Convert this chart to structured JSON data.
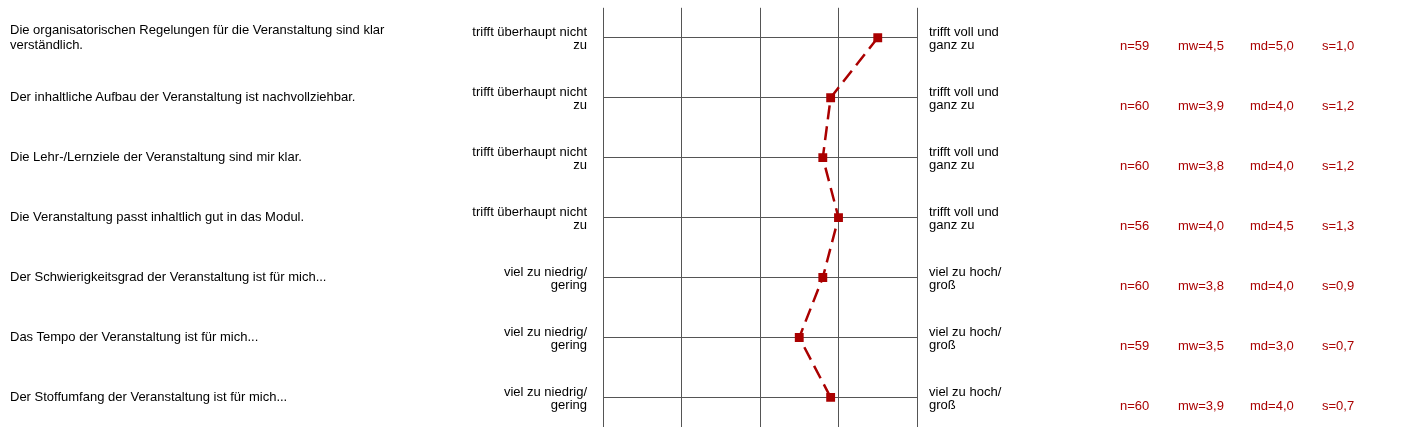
{
  "chart_data": {
    "type": "line",
    "orientation": "horizontal",
    "categories": [
      "Die organisatorischen Regelungen für die Veranstaltung sind klar verständlich.",
      "Der inhaltliche Aufbau der Veranstaltung ist nachvollziehbar.",
      "Die Lehr-/Lernziele der Veranstaltung sind mir klar.",
      "Die Veranstaltung passt inhaltlich gut in das Modul.",
      "Der Schwierigkeitsgrad der Veranstaltung ist für mich...",
      "Das Tempo der Veranstaltung ist für mich...",
      "Der Stoffumfang der Veranstaltung ist für mich..."
    ],
    "values": [
      4.5,
      3.9,
      3.8,
      4.0,
      3.8,
      3.5,
      3.9
    ],
    "value_labels": [
      "mw=4,5",
      "mw=3,9",
      "mw=3,8",
      "mw=4,0",
      "mw=3,8",
      "mw=3,5",
      "mw=3,9"
    ],
    "color": "#aa0000",
    "marker": "square",
    "line_style": "dashed",
    "grid": true,
    "legend": false,
    "tick_labels": "y",
    "xlim": [
      1,
      5
    ],
    "xticks": [
      {
        "value": 1,
        "label": null
      },
      {
        "value": 2,
        "label": null
      },
      {
        "value": 3,
        "label": null
      },
      {
        "value": 4,
        "label": null
      },
      {
        "value": 5,
        "label": null
      }
    ],
    "annotations": [
      "trifft überhaupt nicht zu",
      "trifft voll und ganz zu",
      "n=59",
      "md=5,0",
      "s=1,0",
      "trifft überhaupt nicht zu",
      "trifft voll und ganz zu",
      "n=60",
      "md=4,0",
      "s=1,2",
      "trifft überhaupt nicht zu",
      "trifft voll und ganz zu",
      "n=60",
      "md=4,0",
      "s=1,2",
      "trifft überhaupt nicht zu",
      "trifft voll und ganz zu",
      "n=56",
      "md=4,5",
      "s=1,3",
      "viel zu niedrig/ gering",
      "viel zu hoch/ groß",
      "n=60",
      "md=4,0",
      "s=0,9",
      "viel zu niedrig/ gering",
      "viel zu hoch/ groß",
      "n=59",
      "md=3,0",
      "s=0,7",
      "viel zu niedrig/ gering",
      "viel zu hoch/ groß",
      "n=60",
      "md=4,0",
      "s=0,7"
    ]
  }
}
